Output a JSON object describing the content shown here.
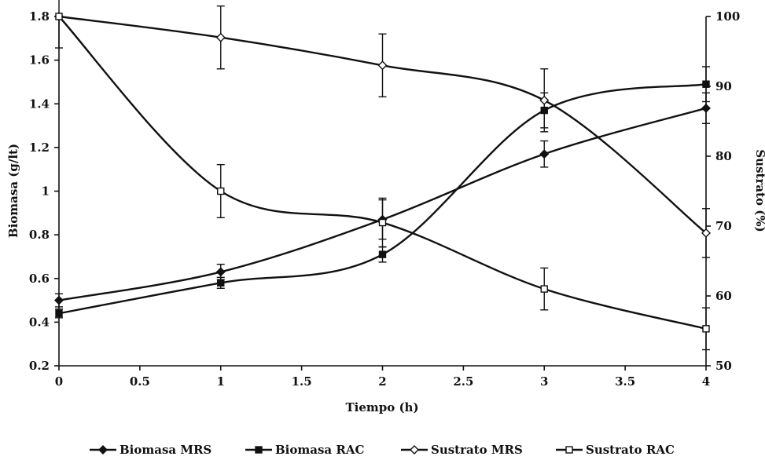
{
  "chart_data": {
    "type": "line",
    "xlabel": "Tiempo (h)",
    "ylabel_left": "Biomasa (g/lt)",
    "ylabel_right": "Sustrato (%)",
    "xlim": [
      0,
      4
    ],
    "ylim_left": [
      0.2,
      1.8
    ],
    "ylim_right": [
      50,
      100
    ],
    "x_ticks": [
      "0",
      "0.5",
      "1",
      "1.5",
      "2",
      "2.5",
      "3",
      "3.5",
      "4"
    ],
    "y_left_ticks": [
      "0.2",
      "0.4",
      "0.6",
      "0.8",
      "1",
      "1.2",
      "1.4",
      "1.6",
      "1.8"
    ],
    "y_right_ticks": [
      "50",
      "60",
      "70",
      "80",
      "90",
      "100"
    ],
    "grid": false,
    "legend_position": "bottom",
    "series": [
      {
        "name": "Biomasa MRS",
        "axis": "left",
        "marker": "diamond-filled",
        "x": [
          0,
          1,
          2,
          3,
          4
        ],
        "y": [
          0.5,
          0.63,
          0.87,
          1.17,
          1.38
        ],
        "err": [
          0.03,
          0.035,
          0.09,
          0.06,
          0.07
        ]
      },
      {
        "name": "Biomasa RAC",
        "axis": "left",
        "marker": "square-filled",
        "x": [
          0,
          1,
          2,
          3,
          4
        ],
        "y": [
          0.44,
          0.58,
          0.71,
          1.37,
          1.49
        ],
        "err": [
          0.02,
          0.025,
          0.035,
          0.08,
          0.08
        ]
      },
      {
        "name": "Sustrato MRS",
        "axis": "right",
        "marker": "diamond-open",
        "x": [
          0,
          1,
          2,
          3,
          4
        ],
        "y": [
          100,
          97,
          93,
          88,
          69
        ],
        "err": [
          0,
          4.5,
          4.5,
          4.5,
          3.5
        ]
      },
      {
        "name": "Sustrato RAC",
        "axis": "right",
        "marker": "square-open",
        "x": [
          0,
          1,
          2,
          3,
          4
        ],
        "y": [
          100,
          75,
          70.5,
          61,
          55.3
        ],
        "err": [
          4.5,
          3.8,
          3.5,
          3,
          3
        ]
      }
    ]
  }
}
